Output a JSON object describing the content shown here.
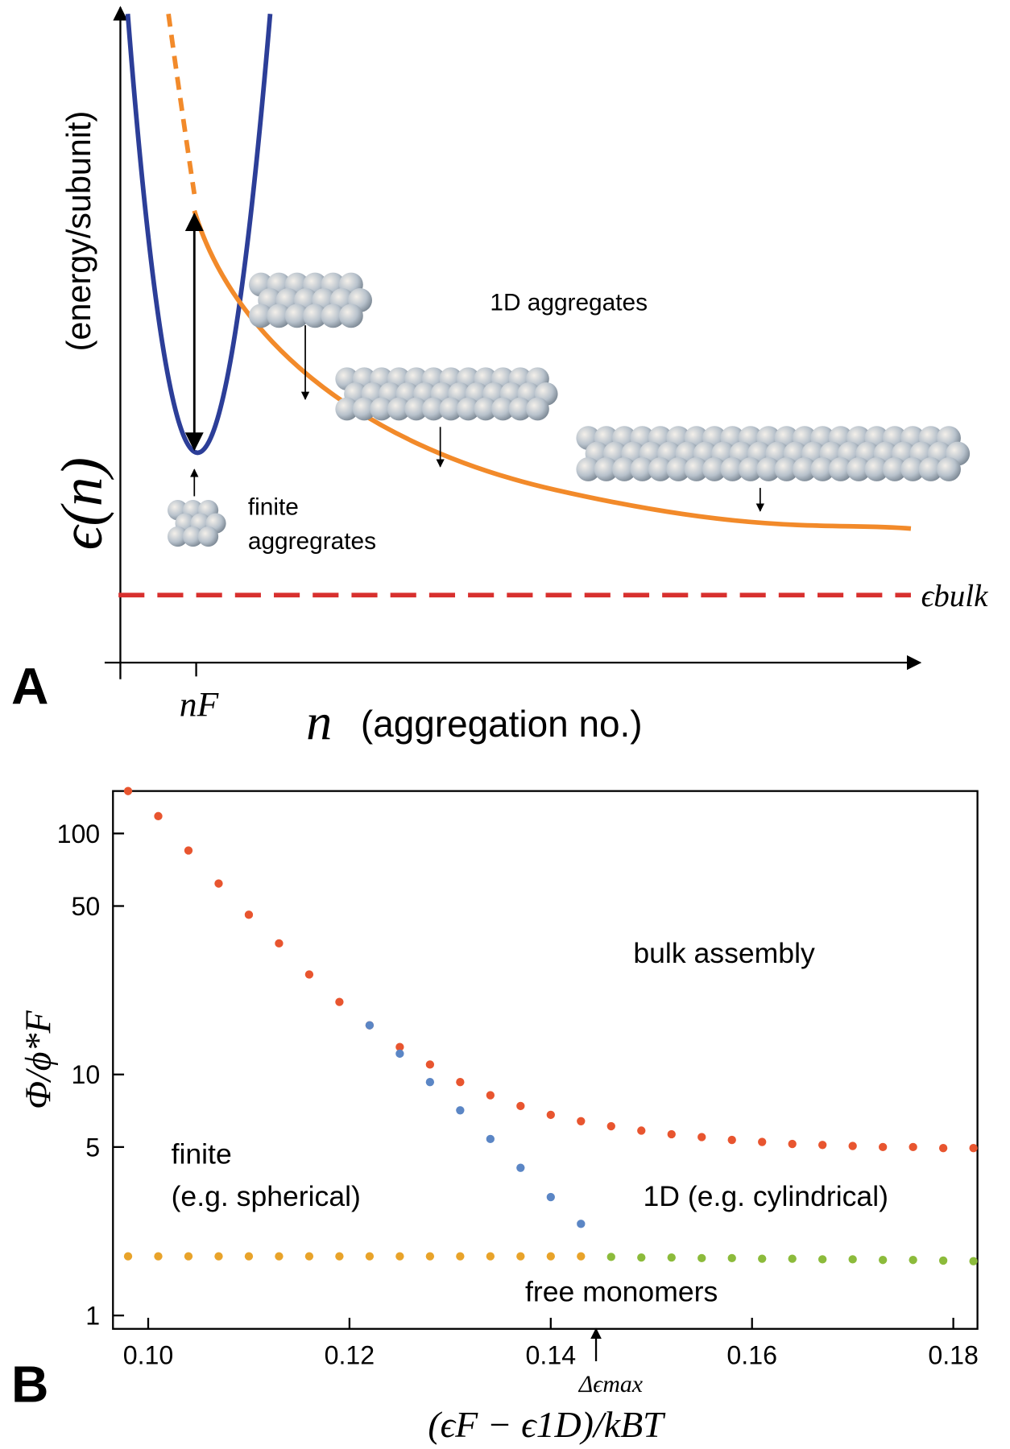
{
  "panel_labels": [
    "A",
    "B"
  ],
  "panel_a": {
    "y_symbol": "ϵ(n)",
    "y_label": "(energy/subunit)",
    "x_symbol": "n",
    "x_label": "(aggregation no.)",
    "x_tick": "nF",
    "bulk_label": "ϵbulk",
    "label_1d": "1D aggregates",
    "label_finite": [
      "finite",
      "aggregrates"
    ]
  },
  "chart_data": {
    "type": "scatter",
    "y_label": "Φ/ϕ*F",
    "x_label": "(ϵF − ϵ1D)/kBT",
    "xlim": [
      0.0965,
      0.1824
    ],
    "ylim": [
      0.88,
      150
    ],
    "ylog": true,
    "xticks": [
      {
        "value": 0.1,
        "label": "0.10"
      },
      0.12,
      0.14,
      0.16,
      0.18
    ],
    "yticks": [
      1,
      5,
      10,
      50,
      100
    ],
    "annotations": [
      {
        "text": "bulk assembly"
      },
      {
        "text": "finite"
      },
      {
        "text": "(e.g. spherical)"
      },
      {
        "text": "1D (e.g. cylindrical)"
      },
      {
        "text": "free monomers"
      },
      {
        "text": "Δϵmax",
        "x": 0.1445
      }
    ],
    "series": [
      {
        "color": "#e8552f",
        "x": [
          0.098,
          0.101,
          0.104,
          0.107,
          0.11,
          0.113,
          0.116,
          0.119,
          0.122,
          0.125,
          0.128,
          0.131,
          0.134,
          0.137,
          0.14,
          0.143,
          0.146,
          0.149,
          0.152,
          0.155,
          0.158,
          0.161,
          0.164,
          0.167,
          0.17,
          0.173,
          0.176,
          0.179,
          0.182
        ],
        "values": [
          150,
          118,
          85,
          62,
          46,
          35,
          26,
          20,
          16,
          13,
          11,
          9.3,
          8.2,
          7.4,
          6.8,
          6.4,
          6.1,
          5.85,
          5.65,
          5.5,
          5.35,
          5.25,
          5.15,
          5.1,
          5.05,
          5.0,
          5.0,
          4.95,
          4.95
        ]
      },
      {
        "color": "#5b86c5",
        "x": [
          0.122,
          0.125,
          0.128,
          0.131,
          0.134,
          0.137,
          0.14,
          0.143
        ],
        "values": [
          16,
          12.2,
          9.3,
          7.1,
          5.4,
          4.1,
          3.1,
          2.4
        ]
      },
      {
        "color": "#e8a32a",
        "x": [
          0.098,
          0.101,
          0.104,
          0.107,
          0.11,
          0.113,
          0.116,
          0.119,
          0.122,
          0.125,
          0.128,
          0.131,
          0.134,
          0.137,
          0.14,
          0.143
        ],
        "values": [
          1.76,
          1.76,
          1.76,
          1.76,
          1.76,
          1.76,
          1.76,
          1.76,
          1.76,
          1.76,
          1.76,
          1.76,
          1.76,
          1.76,
          1.76,
          1.76
        ]
      },
      {
        "color": "#8cbb3b",
        "x": [
          0.146,
          0.149,
          0.152,
          0.155,
          0.158,
          0.161,
          0.164,
          0.167,
          0.17,
          0.173,
          0.176,
          0.179,
          0.182
        ],
        "values": [
          1.75,
          1.74,
          1.74,
          1.73,
          1.73,
          1.72,
          1.72,
          1.71,
          1.71,
          1.7,
          1.7,
          1.69,
          1.68
        ]
      }
    ]
  }
}
